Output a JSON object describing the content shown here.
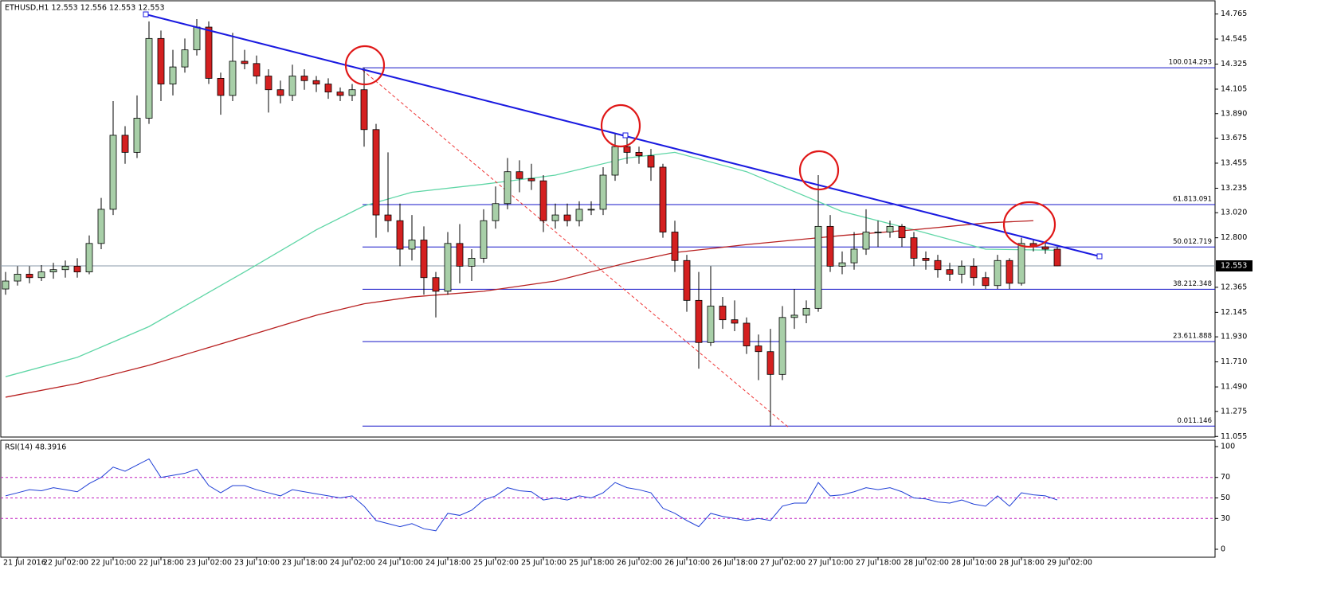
{
  "chart_data": {
    "type": "candlestick",
    "title": "ETHUSD,H1  12.553 12.556 12.553 12.553",
    "ylim": [
      11.05,
      14.86
    ],
    "yticks": [
      14.765,
      14.545,
      14.325,
      14.105,
      {
        "value": 13.89,
        "label": "13.890"
      },
      13.675,
      13.455,
      13.235,
      {
        "value": 13.02,
        "label": "13.020"
      },
      {
        "value": 12.8,
        "label": "12.800"
      },
      12.365,
      12.145,
      {
        "value": 11.93,
        "label": "11.930"
      },
      {
        "value": 11.71,
        "label": "11.710"
      },
      {
        "value": 11.49,
        "label": "11.490"
      },
      11.275,
      11.055
    ],
    "xticks": [
      "21 Jul 2016",
      "22 Jul 02:00",
      "22 Jul 10:00",
      "22 Jul 18:00",
      "23 Jul 02:00",
      "23 Jul 10:00",
      "23 Jul 18:00",
      "24 Jul 02:00",
      "24 Jul 10:00",
      "24 Jul 18:00",
      "25 Jul 02:00",
      "25 Jul 10:00",
      "25 Jul 18:00",
      "26 Jul 02:00",
      "26 Jul 10:00",
      "26 Jul 18:00",
      "27 Jul 02:00",
      "27 Jul 10:00",
      "27 Jul 18:00",
      "28 Jul 02:00",
      "28 Jul 10:00",
      "28 Jul 18:00",
      "29 Jul 02:00"
    ],
    "last_price": 12.553,
    "up_color": "#a8cfa8",
    "down_color": "#d42020",
    "candles": {
      "open": [
        12.35,
        12.42,
        12.48,
        12.45,
        12.5,
        12.52,
        12.55,
        12.5,
        12.75,
        13.05,
        13.7,
        13.55,
        13.85,
        14.55,
        14.15,
        14.3,
        14.45,
        14.65,
        14.2,
        14.05,
        14.35,
        14.33,
        14.22,
        14.1,
        14.05,
        14.22,
        14.18,
        14.15,
        14.08,
        14.05,
        14.1,
        13.75,
        13.0,
        12.95,
        12.7,
        12.78,
        12.45,
        12.33,
        12.75,
        12.55,
        12.62,
        12.95,
        13.1,
        13.38,
        13.32,
        13.3,
        12.95,
        13.0,
        12.95,
        13.05,
        13.05,
        13.35,
        13.6,
        13.55,
        13.52,
        13.42,
        12.85,
        12.6,
        12.25,
        11.88,
        12.2,
        12.08,
        12.05,
        11.85,
        11.8,
        11.6,
        12.1,
        12.12,
        12.18,
        12.9,
        12.55,
        12.58,
        12.7,
        12.85,
        12.85,
        12.9,
        12.8,
        12.62,
        12.6,
        12.52,
        12.48,
        12.55,
        12.45,
        12.38,
        12.6,
        12.4,
        12.75,
        12.72,
        12.7
      ],
      "high": [
        12.5,
        12.55,
        12.55,
        12.56,
        12.58,
        12.6,
        12.62,
        12.82,
        13.15,
        14.0,
        13.78,
        14.05,
        14.7,
        14.62,
        14.45,
        14.55,
        14.72,
        14.7,
        14.25,
        14.6,
        14.45,
        14.4,
        14.28,
        14.18,
        14.32,
        14.28,
        14.22,
        14.2,
        14.12,
        14.15,
        14.293,
        13.8,
        13.55,
        13.1,
        13.0,
        12.9,
        12.5,
        12.85,
        12.92,
        12.7,
        13.05,
        13.25,
        13.5,
        13.48,
        13.45,
        13.35,
        13.1,
        13.1,
        13.12,
        13.12,
        13.42,
        13.72,
        13.68,
        13.6,
        13.58,
        13.45,
        12.95,
        12.65,
        12.5,
        12.55,
        12.28,
        12.25,
        12.1,
        11.95,
        12.0,
        12.2,
        12.35,
        12.25,
        13.35,
        13.0,
        12.68,
        12.85,
        13.05,
        12.95,
        12.95,
        12.92,
        12.85,
        12.68,
        12.65,
        12.58,
        12.6,
        12.62,
        12.5,
        12.65,
        12.62,
        12.8,
        12.78,
        12.76,
        12.72
      ],
      "low": [
        12.3,
        12.38,
        12.4,
        12.42,
        12.44,
        12.45,
        12.45,
        12.48,
        12.7,
        13.0,
        13.45,
        13.5,
        13.8,
        14.0,
        14.05,
        14.25,
        14.4,
        14.15,
        13.88,
        14.0,
        14.28,
        14.15,
        13.9,
        13.98,
        14.0,
        14.1,
        14.08,
        14.02,
        14.0,
        14.0,
        13.6,
        12.8,
        12.85,
        12.55,
        12.6,
        12.3,
        12.1,
        12.3,
        12.4,
        12.42,
        12.58,
        12.88,
        13.05,
        13.2,
        13.22,
        12.85,
        12.88,
        12.9,
        12.9,
        13.0,
        13.0,
        13.3,
        13.45,
        13.45,
        13.3,
        12.8,
        12.5,
        12.15,
        11.65,
        11.85,
        12.0,
        11.98,
        11.78,
        11.55,
        11.146,
        11.55,
        12.0,
        12.05,
        12.15,
        12.5,
        12.48,
        12.52,
        12.65,
        12.72,
        12.8,
        12.72,
        12.55,
        12.52,
        12.45,
        12.42,
        12.4,
        12.38,
        12.35,
        12.35,
        12.35,
        12.38,
        12.68,
        12.66,
        12.55
      ],
      "close": [
        12.42,
        12.48,
        12.45,
        12.5,
        12.52,
        12.55,
        12.5,
        12.75,
        13.05,
        13.7,
        13.55,
        13.85,
        14.55,
        14.15,
        14.3,
        14.45,
        14.65,
        14.2,
        14.05,
        14.35,
        14.33,
        14.22,
        14.1,
        14.05,
        14.22,
        14.18,
        14.15,
        14.08,
        14.05,
        14.1,
        13.75,
        13.0,
        12.95,
        12.7,
        12.78,
        12.45,
        12.33,
        12.75,
        12.55,
        12.62,
        12.95,
        13.1,
        13.38,
        13.32,
        13.3,
        12.95,
        13.0,
        12.95,
        13.05,
        13.05,
        13.35,
        13.6,
        13.55,
        13.52,
        13.42,
        12.85,
        12.6,
        12.25,
        11.88,
        12.2,
        12.08,
        12.05,
        11.85,
        11.8,
        11.6,
        12.1,
        12.12,
        12.18,
        12.9,
        12.55,
        12.58,
        12.7,
        12.85,
        12.85,
        12.9,
        12.8,
        12.62,
        12.6,
        12.52,
        12.48,
        12.55,
        12.45,
        12.38,
        12.6,
        12.4,
        12.75,
        12.72,
        12.7,
        12.553
      ]
    },
    "moving_averages": [
      {
        "color": "#5fd6a6",
        "x": [
          0,
          6,
          12,
          20,
          26,
          30,
          34,
          40,
          46,
          52,
          56,
          62,
          70,
          76,
          82,
          88
        ],
        "values": [
          11.58,
          11.75,
          12.02,
          12.5,
          12.87,
          13.08,
          13.2,
          13.27,
          13.35,
          13.5,
          13.55,
          13.38,
          13.03,
          12.87,
          12.7,
          12.69
        ]
      },
      {
        "color": "#b82020",
        "x": [
          0,
          6,
          12,
          20,
          26,
          30,
          34,
          40,
          46,
          52,
          56,
          62,
          70,
          76,
          82,
          86
        ],
        "values": [
          11.4,
          11.52,
          11.68,
          11.93,
          12.12,
          12.22,
          12.28,
          12.33,
          12.42,
          12.58,
          12.67,
          12.74,
          12.82,
          12.87,
          12.93,
          12.95
        ]
      }
    ],
    "fibonacci": [
      {
        "level": "100.0",
        "price": 14.293
      },
      {
        "level": "61.8",
        "price": 13.091
      },
      {
        "level": "50.0",
        "price": 12.719
      },
      {
        "level": "38.2",
        "price": 12.348
      },
      {
        "level": "23.6",
        "price": 11.888
      },
      {
        "level": "0.0",
        "price": 11.146
      }
    ],
    "rsi": {
      "title": "RSI(14) 48.3916",
      "color": "#1f3fd6",
      "ylim": [
        0,
        100
      ],
      "yticks": [
        100,
        70,
        50,
        30,
        0
      ],
      "levels": [
        70,
        50,
        30
      ],
      "values": [
        52,
        55,
        58,
        57,
        60,
        58,
        56,
        64,
        70,
        80,
        76,
        82,
        88,
        70,
        72,
        74,
        78,
        62,
        55,
        62,
        62,
        58,
        55,
        52,
        58,
        56,
        54,
        52,
        50,
        52,
        42,
        28,
        25,
        22,
        25,
        20,
        18,
        35,
        33,
        38,
        48,
        52,
        60,
        57,
        56,
        48,
        50,
        48,
        52,
        50,
        55,
        65,
        60,
        58,
        55,
        40,
        35,
        28,
        22,
        35,
        32,
        30,
        28,
        30,
        28,
        42,
        45,
        45,
        65,
        52,
        53,
        56,
        60,
        58,
        60,
        56,
        50,
        49,
        46,
        45,
        48,
        44,
        42,
        52,
        42,
        55,
        53,
        52,
        48
      ]
    }
  }
}
